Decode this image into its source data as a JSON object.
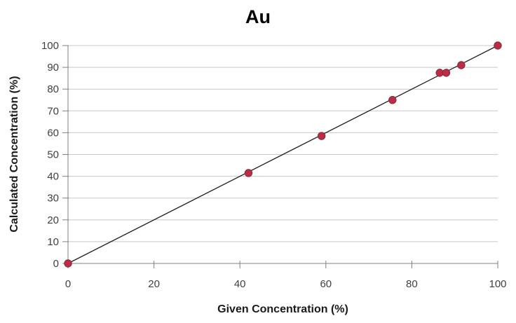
{
  "chart_data": {
    "type": "scatter",
    "title": "Au",
    "xlabel": "Given Concentration (%)",
    "ylabel": "Calculated Concentration (%)",
    "xlim": [
      0,
      100
    ],
    "ylim": [
      0,
      100
    ],
    "xticks": [
      0,
      20,
      40,
      60,
      80,
      100
    ],
    "yticks": [
      0,
      10,
      20,
      30,
      40,
      50,
      60,
      70,
      80,
      90,
      100
    ],
    "grid": "horizontal-only",
    "legend": "none",
    "series": [
      {
        "name": "Au",
        "points": [
          {
            "x": 0,
            "y": 0
          },
          {
            "x": 42,
            "y": 41.5
          },
          {
            "x": 59,
            "y": 58.5
          },
          {
            "x": 75.5,
            "y": 75
          },
          {
            "x": 86.5,
            "y": 87.5
          },
          {
            "x": 88,
            "y": 87.5
          },
          {
            "x": 91.5,
            "y": 91
          },
          {
            "x": 100,
            "y": 100
          }
        ]
      }
    ],
    "fit_line": {
      "x1": 0,
      "y1": 0,
      "x2": 100,
      "y2": 100
    },
    "colors": {
      "marker_fill": "#BE2B45",
      "marker_border": "#7E2A3C",
      "fit_line": "#1F1F1F",
      "grid": "#C8C8C8",
      "axis": "#808080",
      "tick_label": "#3F3F3F",
      "background": "#FFFFFF"
    }
  }
}
